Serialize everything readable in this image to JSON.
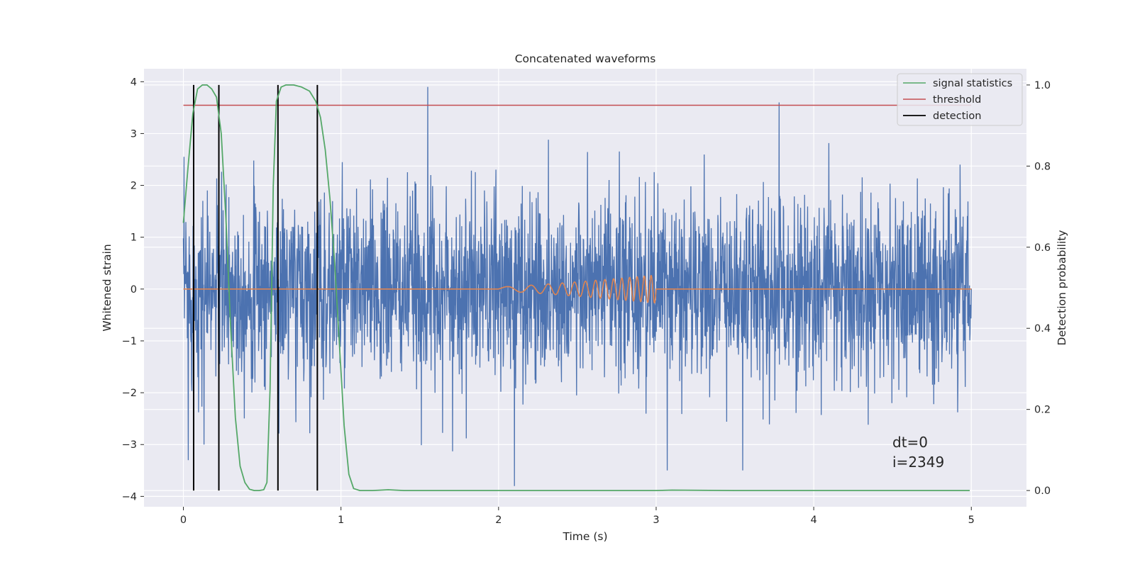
{
  "chart_data": {
    "type": "line",
    "title": "Concatenated waveforms",
    "xlabel": "Time (s)",
    "ylabel": "Whitened strain",
    "y2label": "Detection probability",
    "xlim": [
      -0.25,
      5.35
    ],
    "ylim": [
      -4.2,
      4.25
    ],
    "y2lim": [
      -0.04,
      1.04
    ],
    "x_ticks": [
      0,
      1,
      2,
      3,
      4,
      5
    ],
    "y_ticks": [
      4,
      3,
      2,
      1,
      0,
      -1,
      -2,
      -3,
      -4
    ],
    "y2_ticks": [
      1.0,
      0.8,
      0.6,
      0.4,
      0.2,
      0.0
    ],
    "x_tick_labels": [
      "0",
      "1",
      "2",
      "3",
      "4",
      "5"
    ],
    "y_tick_labels": [
      "4",
      "3",
      "2",
      "1",
      "0",
      "−1",
      "−2",
      "−3",
      "−4"
    ],
    "y2_tick_labels": [
      "1.0",
      "0.8",
      "0.6",
      "0.4",
      "0.2",
      "0.0"
    ],
    "grid": true,
    "legend_position": "top-right",
    "colors": {
      "background": "#eaeaf2",
      "strain": "#4c72b0",
      "injection": "#dd8452",
      "signal_statistics": "#55a868",
      "threshold": "#c44e52",
      "detection": "#000000",
      "grid": "#ffffff"
    },
    "series": [
      {
        "name": "signal statistics",
        "axis": "right",
        "x": [
          0,
          0.03,
          0.06,
          0.09,
          0.12,
          0.15,
          0.18,
          0.21,
          0.24,
          0.27,
          0.3,
          0.33,
          0.36,
          0.39,
          0.42,
          0.45,
          0.48,
          0.51,
          0.53,
          0.55,
          0.57,
          0.59,
          0.62,
          0.65,
          0.7,
          0.75,
          0.8,
          0.84,
          0.87,
          0.9,
          0.93,
          0.96,
          0.99,
          1.02,
          1.05,
          1.08,
          1.12,
          1.2,
          1.3,
          1.4,
          1.6,
          2.0,
          2.5,
          3.0,
          3.1,
          3.5,
          4.0,
          4.5,
          4.99
        ],
        "values": [
          0.66,
          0.8,
          0.93,
          0.99,
          1.0,
          1.0,
          0.99,
          0.97,
          0.88,
          0.67,
          0.4,
          0.18,
          0.06,
          0.02,
          0.003,
          0.0,
          0.0,
          0.002,
          0.02,
          0.25,
          0.75,
          0.96,
          0.995,
          1.0,
          1.0,
          0.995,
          0.985,
          0.96,
          0.92,
          0.84,
          0.72,
          0.56,
          0.36,
          0.16,
          0.04,
          0.005,
          0.0,
          0.0,
          0.002,
          0.0,
          0.0,
          0.0,
          0.0,
          0.0,
          0.001,
          0.0,
          0.0,
          0.0,
          0.0
        ]
      },
      {
        "name": "threshold",
        "axis": "right",
        "x": [
          0,
          5
        ],
        "values": [
          0.95,
          0.95
        ]
      },
      {
        "name": "detection",
        "axis": "right",
        "x": [
          0.065,
          0.225,
          0.6,
          0.85
        ],
        "values": [
          [
            0.0,
            1.0
          ],
          [
            0.0,
            1.0
          ],
          [
            0.0,
            1.0
          ],
          [
            0.0,
            1.0
          ]
        ]
      },
      {
        "name": "",
        "axis": "left",
        "x_range": [
          0,
          5
        ],
        "noise_std": 0.9,
        "spikes": [
          {
            "x": 1.55,
            "y": 3.9
          },
          {
            "x": 3.78,
            "y": 3.6
          },
          {
            "x": 2.1,
            "y": -3.8
          },
          {
            "x": 0.03,
            "y": -3.3
          },
          {
            "x": 0.13,
            "y": -3.0
          },
          {
            "x": 3.55,
            "y": -3.5
          },
          {
            "x": 3.07,
            "y": -3.5
          }
        ]
      },
      {
        "name": "",
        "axis": "left",
        "x_range": [
          2.0,
          3.0
        ],
        "flat_range": [
          0,
          5
        ],
        "start_amplitude": 0.04,
        "end_amplitude": 0.27
      }
    ],
    "annotations": [
      "dt=0",
      "i=2349"
    ]
  }
}
